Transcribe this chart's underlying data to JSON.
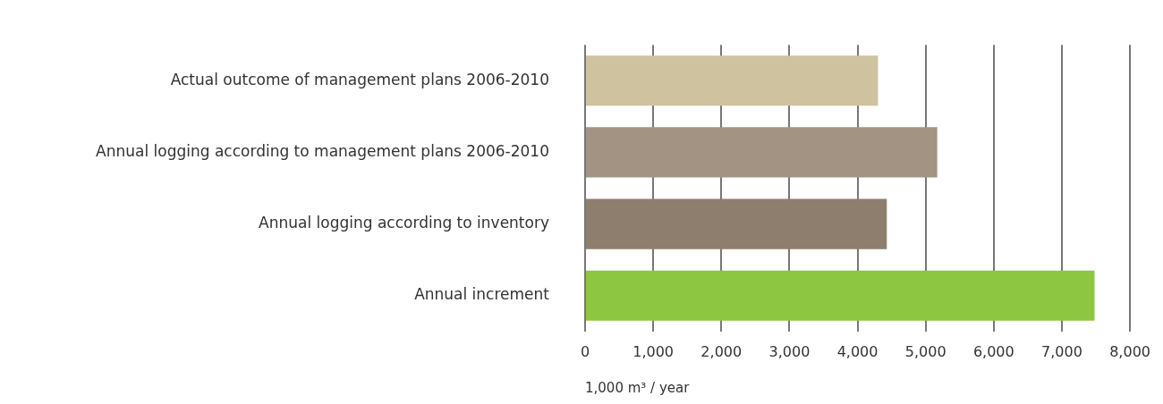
{
  "chart_data": {
    "type": "bar",
    "orientation": "horizontal",
    "categories": [
      "Actual outcome of management plans 2006-2010",
      "Annual logging according to management plans 2006-2010",
      "Annual logging according to inventory",
      "Annual increment"
    ],
    "values": [
      4300,
      5170,
      4430,
      7480
    ],
    "colors": [
      "#cfc29f",
      "#a39382",
      "#8e7e6d",
      "#8dc641"
    ],
    "xlabel": "1,000 m³ / year",
    "xlim": [
      0,
      8000
    ],
    "xticks": [
      0,
      {
        "value": 1000,
        "label": "1,000"
      },
      {
        "value": 2000,
        "label": "2,000"
      },
      {
        "value": 3000,
        "label": "3,000"
      },
      {
        "value": 4000,
        "label": "4,000"
      },
      {
        "value": 5000,
        "label": "5,000"
      },
      {
        "value": 6000,
        "label": "6,000"
      },
      {
        "value": 7000,
        "label": "7,000"
      },
      {
        "value": 8000,
        "label": "8,000"
      }
    ],
    "grid": "x",
    "legend": false
  }
}
